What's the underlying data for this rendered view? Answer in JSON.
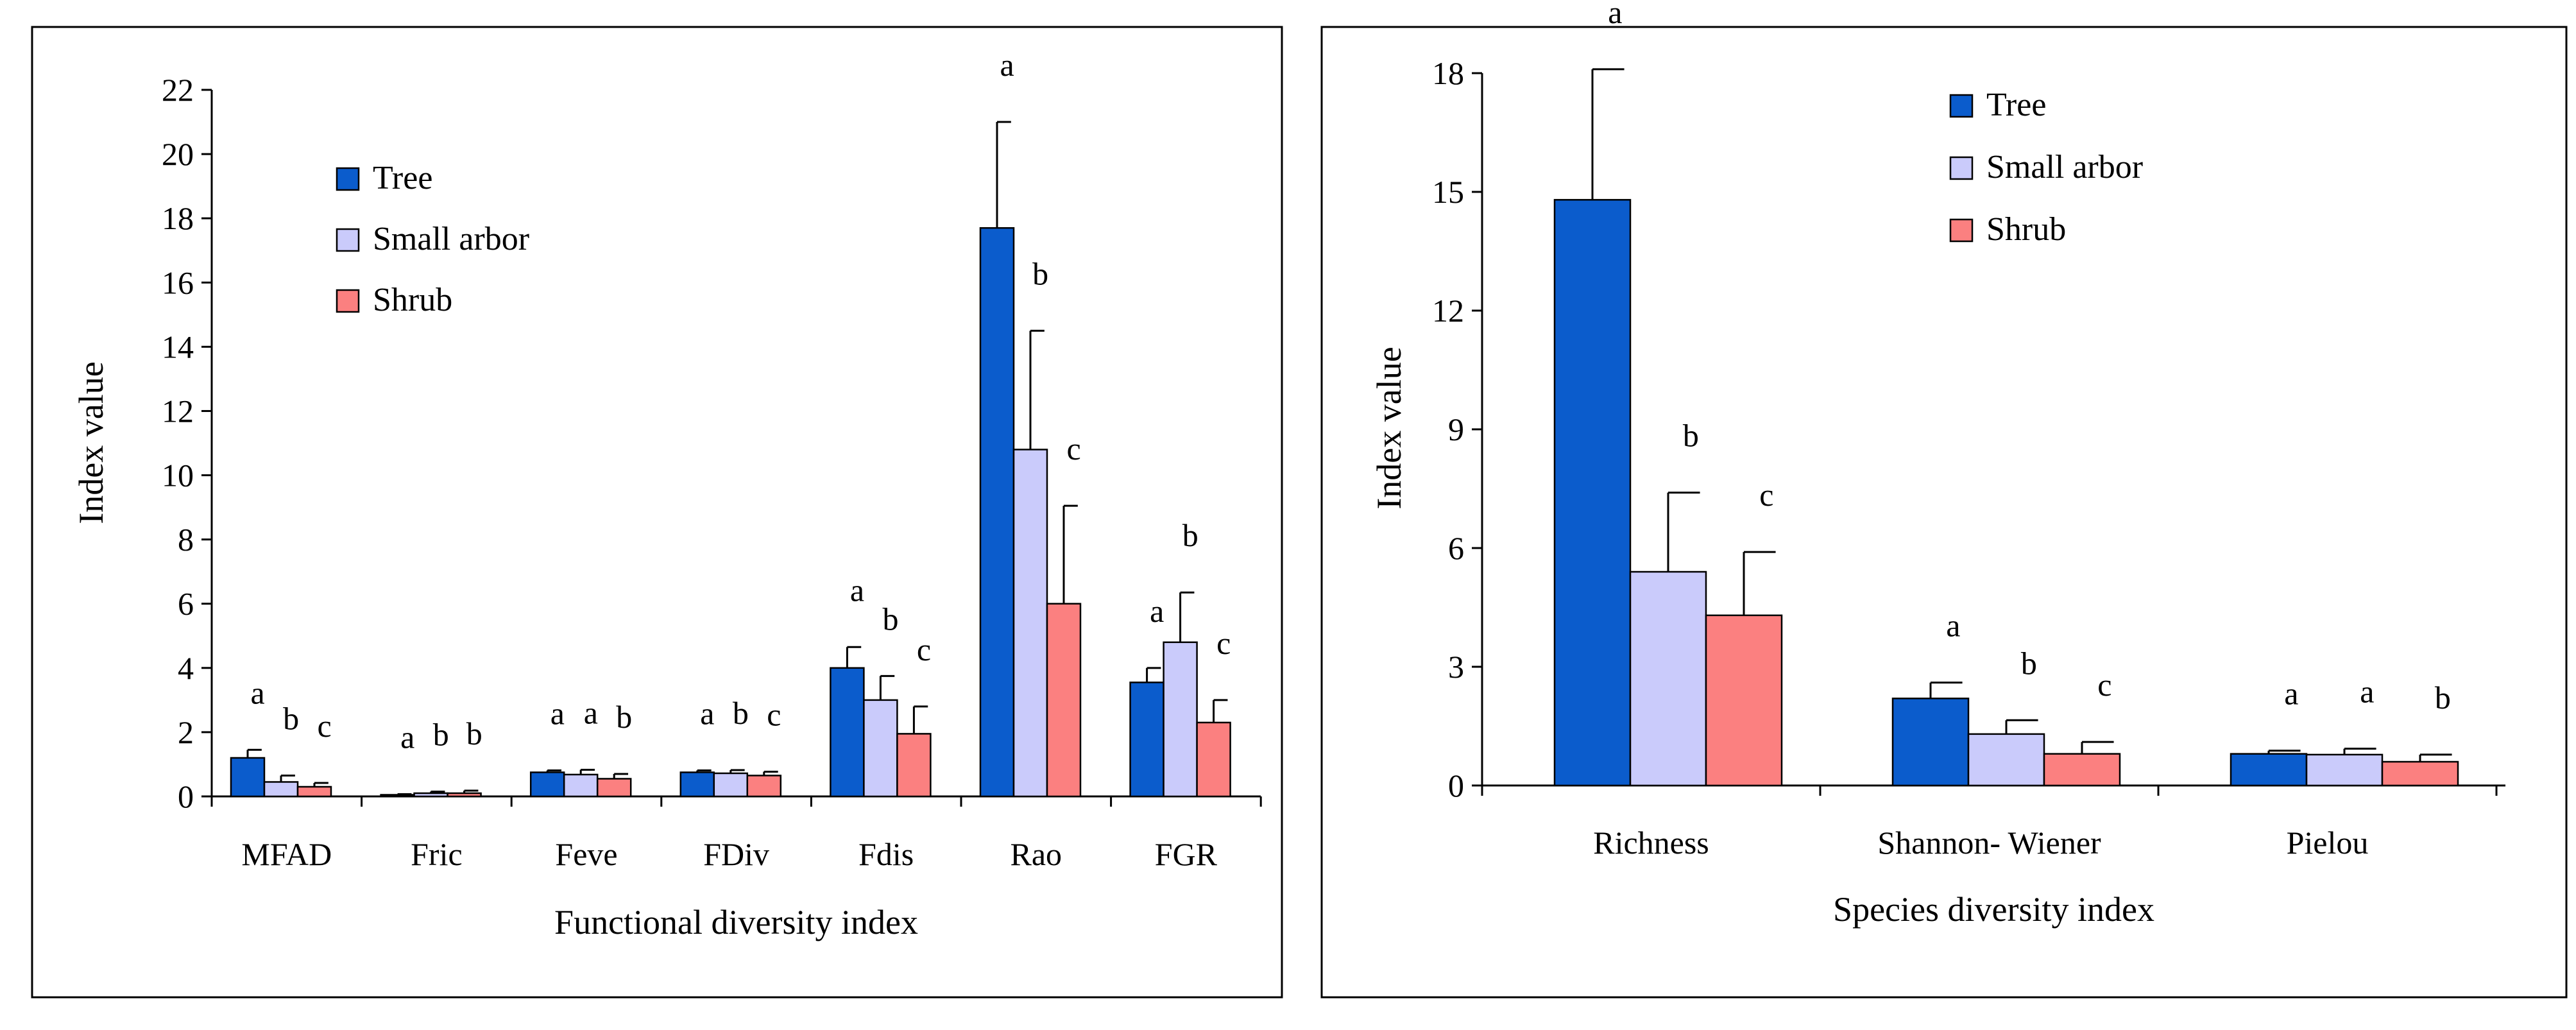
{
  "colors": {
    "tree": "#0b5ccc",
    "small_arbor": "#cacbfb",
    "shrub": "#fb8080",
    "frame": "#000000"
  },
  "chart_data": [
    {
      "type": "bar",
      "xlabel": "Functional diversity index",
      "ylabel": "Index value",
      "ylim": [
        0,
        22
      ],
      "yticks": [
        0,
        2,
        4,
        6,
        8,
        10,
        12,
        14,
        16,
        18,
        20,
        22
      ],
      "legend_position": "top-left",
      "categories": [
        "MFAD",
        "Fric",
        "Feve",
        "FDiv",
        "Fdis",
        "Rao",
        "FGR"
      ],
      "series": [
        {
          "name": "Tree",
          "color_key": "tree",
          "values": [
            1.2,
            0.05,
            0.75,
            0.75,
            4.0,
            17.7,
            3.55
          ],
          "errors": [
            0.25,
            0.02,
            0.06,
            0.06,
            0.65,
            3.3,
            0.45
          ],
          "letters": [
            "a",
            "a",
            "a",
            "a",
            "a",
            "a",
            "a"
          ]
        },
        {
          "name": "Small arbor",
          "color_key": "small_arbor",
          "values": [
            0.45,
            0.1,
            0.68,
            0.72,
            3.0,
            10.8,
            4.8
          ],
          "errors": [
            0.2,
            0.05,
            0.15,
            0.1,
            0.75,
            3.7,
            1.55
          ],
          "letters": [
            "b",
            "b",
            "a",
            "b",
            "b",
            "b",
            "b"
          ]
        },
        {
          "name": "Shrub",
          "color_key": "shrub",
          "values": [
            0.3,
            0.1,
            0.55,
            0.65,
            1.95,
            6.0,
            2.3
          ],
          "errors": [
            0.12,
            0.08,
            0.15,
            0.12,
            0.85,
            3.05,
            0.7
          ],
          "letters": [
            "c",
            "b",
            "b",
            "c",
            "c",
            "c",
            "c"
          ]
        }
      ]
    },
    {
      "type": "bar",
      "xlabel": "Species diversity index",
      "ylabel": "Index value",
      "ylim": [
        0,
        18
      ],
      "yticks": [
        0,
        3,
        6,
        9,
        12,
        15,
        18
      ],
      "legend_position": "top-center",
      "categories": [
        "Richness",
        "Shannon- Wiener",
        "Pielou"
      ],
      "series": [
        {
          "name": "Tree",
          "color_key": "tree",
          "values": [
            14.8,
            2.2,
            0.8
          ],
          "errors": [
            3.3,
            0.4,
            0.08
          ],
          "letters": [
            "a",
            "a",
            "a"
          ]
        },
        {
          "name": "Small arbor",
          "color_key": "small_arbor",
          "values": [
            5.4,
            1.3,
            0.78
          ],
          "errors": [
            2.0,
            0.35,
            0.15
          ],
          "letters": [
            "b",
            "b",
            "a"
          ]
        },
        {
          "name": "Shrub",
          "color_key": "shrub",
          "values": [
            4.3,
            0.8,
            0.6
          ],
          "errors": [
            1.6,
            0.3,
            0.18
          ],
          "letters": [
            "c",
            "c",
            "b"
          ]
        }
      ]
    }
  ]
}
